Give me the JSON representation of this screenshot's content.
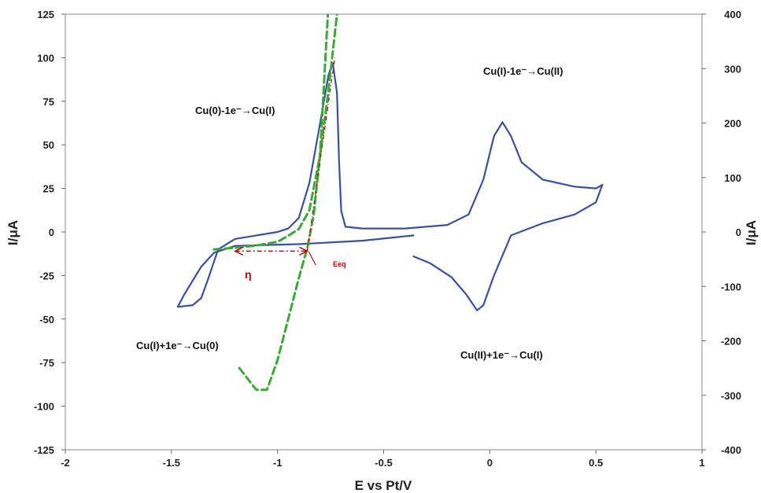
{
  "chart_data": {
    "type": "line",
    "xlabel": "E vs Pt/V",
    "ylabel_left": "I/μA",
    "ylabel_right": "I/μA",
    "xlim": [
      -2,
      1
    ],
    "ylim_left": [
      -125,
      125
    ],
    "ylim_right": [
      -400,
      400
    ],
    "x_ticks": [
      "-2",
      "-1.5",
      "-1",
      "-0.5",
      "0",
      "0.5",
      "1"
    ],
    "y_ticks_left": [
      "125",
      "100",
      "75",
      "50",
      "25",
      "0",
      "-25",
      "-50",
      "-75",
      "-100",
      "-125"
    ],
    "y_ticks_right": [
      "400",
      "300",
      "200",
      "100",
      "0",
      "-100",
      "-200",
      "-300",
      "-400"
    ],
    "grid": false,
    "colors": {
      "cv": "#3a4fa0",
      "dashed": "#3aaa35",
      "annotation": "#cc0000",
      "fit": "#8b2252"
    },
    "series": [
      {
        "axis": "left",
        "style": "solid",
        "color": "#3a4fa0",
        "x": [
          -0.36,
          -0.6,
          -0.9,
          -1.2,
          -1.3,
          -1.36,
          -1.4,
          -1.44,
          -1.47,
          -1.4,
          -1.36,
          -1.33,
          -1.28,
          -1.2,
          -1.1,
          -1.0,
          -0.95,
          -0.9,
          -0.85,
          -0.8,
          -0.76,
          -0.74,
          -0.72,
          -0.71,
          -0.7,
          -0.68,
          -0.6,
          -0.4,
          -0.2,
          -0.1,
          -0.03,
          0.02,
          0.06,
          0.1,
          0.15,
          0.25,
          0.4,
          0.5,
          0.53
        ],
        "y": [
          -2,
          -5,
          -7,
          -8,
          -12,
          -20,
          -28,
          -36,
          -43,
          -42,
          -38,
          -28,
          -10,
          -4,
          -2,
          0,
          2,
          8,
          28,
          62,
          90,
          97,
          80,
          40,
          12,
          3,
          2,
          2,
          4,
          10,
          30,
          55,
          63,
          55,
          40,
          30,
          26,
          25,
          27
        ]
      },
      {
        "axis": "left",
        "style": "solid",
        "color": "#3a4fa0",
        "x": [
          -0.36,
          -0.28,
          -0.18,
          -0.11,
          -0.06,
          -0.03,
          0.02,
          0.1,
          0.25,
          0.4,
          0.5,
          0.53
        ],
        "y": [
          -14,
          -18,
          -26,
          -36,
          -45,
          -42,
          -25,
          -2,
          5,
          10,
          17,
          27
        ]
      },
      {
        "axis": "right",
        "style": "dashed",
        "color": "#3aaa35",
        "x": [
          -1.3,
          -1.2,
          -1.1,
          -1.0,
          -0.95,
          -0.9,
          -0.85,
          -0.8,
          -0.76,
          -0.72,
          -0.7
        ],
        "y": [
          -32,
          -29,
          -25,
          -18,
          -7,
          5,
          40,
          140,
          260,
          400,
          420
        ]
      },
      {
        "axis": "right",
        "style": "dashed",
        "color": "#3aaa35",
        "x": [
          -1.18,
          -1.1,
          -1.05,
          -1.0,
          -0.95,
          -0.9,
          -0.86,
          -0.83,
          -0.8,
          -0.78,
          -0.76
        ],
        "y": [
          -250,
          -290,
          -290,
          -235,
          -160,
          -85,
          -30,
          30,
          140,
          280,
          420
        ]
      }
    ],
    "annotations": {
      "cu0_cu1": "Cu(0)-1e⁻→Cu(I)",
      "cu1_cu2": "Cu(I)-1e⁻→Cu(II)",
      "cu1_cu0": "Cu(I)+1e⁻→Cu(0)",
      "cu2_cu1": "Cu(II)+1e⁻→Cu(I)",
      "eta": "η",
      "eeq": "Eeq"
    }
  }
}
